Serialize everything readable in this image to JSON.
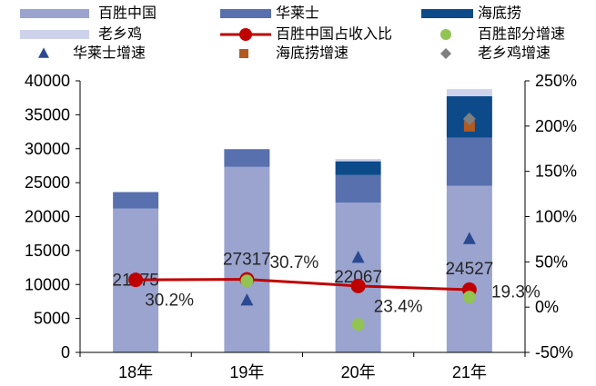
{
  "chart_data": {
    "type": "bar",
    "stacked": true,
    "legend_position": "top",
    "grid": false,
    "categories": [
      "18年",
      "19年",
      "20年",
      "21年"
    ],
    "y_left": {
      "min": 0,
      "max": 40000,
      "ticks": [
        0,
        5000,
        10000,
        15000,
        20000,
        25000,
        30000,
        35000,
        40000
      ],
      "tick_labels": [
        "0",
        "5000",
        "10000",
        "15000",
        "20000",
        "25000",
        "30000",
        "35000",
        "40000"
      ]
    },
    "y_right": {
      "min": -50,
      "max": 250,
      "ticks": [
        -50,
        0,
        50,
        100,
        150,
        200,
        250
      ],
      "tick_labels": [
        "-50%",
        "0%",
        "50%",
        "100%",
        "150%",
        "200%",
        "250%"
      ]
    },
    "series": [
      {
        "name": "百胜中国",
        "type": "bar",
        "color": "#9aa4cf",
        "values": [
          21175,
          27317,
          22067,
          24527
        ],
        "data_labels": true
      },
      {
        "name": "华莱士",
        "type": "bar",
        "color": "#5870ae",
        "values": [
          2440,
          2620,
          4050,
          7100
        ]
      },
      {
        "name": "海底捞",
        "type": "bar",
        "color": "#0c4a8a",
        "values": [
          null,
          null,
          2030,
          6100
        ]
      },
      {
        "name": "老乡鸡",
        "type": "bar",
        "color": "#ced2ea",
        "values": [
          null,
          null,
          340,
          1050
        ]
      },
      {
        "name": "百胜中国占收入比",
        "type": "line",
        "color": "#c00000",
        "values": [
          30.2,
          30.7,
          23.4,
          19.3
        ],
        "data_labels": true
      },
      {
        "name": "百胜部分增速",
        "type": "scatter",
        "marker": "circle",
        "color": "#92c353",
        "values": [
          null,
          29.0,
          -19.2,
          11.1
        ]
      },
      {
        "name": "华莱士增速",
        "type": "scatter",
        "marker": "triangle",
        "color": "#2b4990",
        "values": [
          null,
          7.4,
          54.6,
          75.3
        ]
      },
      {
        "name": "海底捞增速",
        "type": "scatter",
        "marker": "square",
        "color": "#b35a1f",
        "values": [
          null,
          null,
          null,
          200
        ]
      },
      {
        "name": "老乡鸡增速",
        "type": "scatter",
        "marker": "diamond",
        "color": "#7f7f7f",
        "values": [
          null,
          null,
          null,
          208
        ]
      }
    ]
  }
}
